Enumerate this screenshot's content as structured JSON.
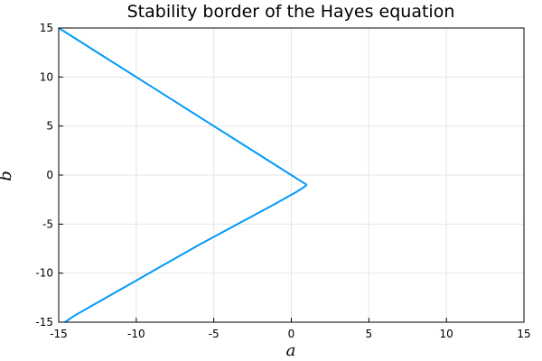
{
  "chart_data": {
    "type": "line",
    "title": "Stability border of the Hayes equation",
    "xlabel": "a",
    "ylabel": "b",
    "xlim": [
      -15,
      15
    ],
    "ylim": [
      -15,
      15
    ],
    "xticks": [
      -15,
      -10,
      -5,
      0,
      5,
      10,
      15
    ],
    "yticks": [
      -15,
      -10,
      -5,
      0,
      5,
      10,
      15
    ],
    "grid": true,
    "legend": "none",
    "series": [
      {
        "color": "#009af9",
        "x": [
          -15,
          -14,
          -13,
          -12,
          -11,
          -10,
          -9,
          -8,
          -7,
          -6,
          -5,
          -4,
          -3,
          -2,
          -1,
          0,
          0.5,
          1
        ],
        "y": [
          15,
          14,
          13,
          12,
          11,
          10,
          9,
          8,
          7,
          6,
          5,
          4,
          3,
          2,
          1,
          0,
          -0.5,
          -1
        ]
      },
      {
        "color": "#009af9",
        "x": [
          1,
          0.8,
          0.6,
          0.3,
          0,
          -0.5,
          -1,
          -2,
          -3,
          -4,
          -5,
          -6,
          -7,
          -8,
          -9,
          -10,
          -11,
          -12,
          -13,
          -14,
          -14.6
        ],
        "y": [
          -1,
          -1.25,
          -1.45,
          -1.75,
          -2,
          -2.45,
          -2.9,
          -3.75,
          -4.6,
          -5.45,
          -6.3,
          -7.15,
          -8.05,
          -8.95,
          -9.85,
          -10.75,
          -11.65,
          -12.55,
          -13.45,
          -14.35,
          -15
        ]
      }
    ]
  }
}
